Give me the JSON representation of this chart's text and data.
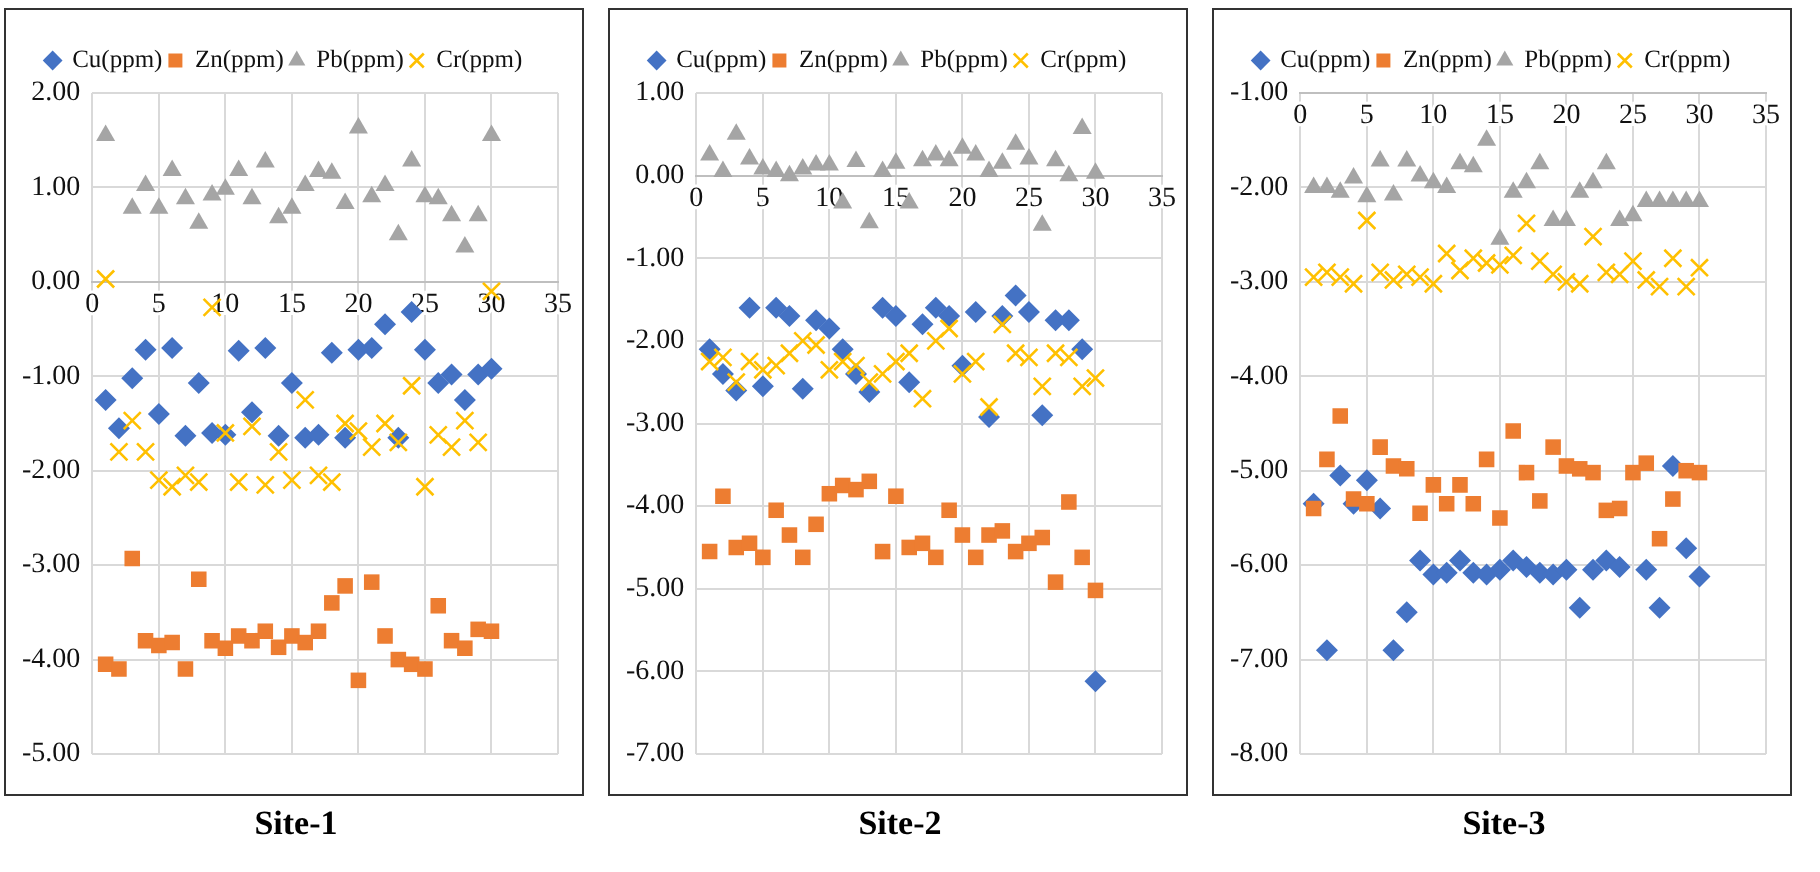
{
  "chart_data": [
    {
      "type": "scatter",
      "title": "Site-1",
      "x": [
        1,
        2,
        3,
        4,
        5,
        6,
        7,
        8,
        9,
        10,
        11,
        12,
        13,
        14,
        15,
        16,
        17,
        18,
        19,
        20,
        21,
        22,
        23,
        24,
        25,
        26,
        27,
        28,
        29,
        30
      ],
      "xlim": [
        0,
        35
      ],
      "xticks": [
        0,
        5,
        10,
        15,
        20,
        25,
        30,
        35
      ],
      "ylim": [
        -5,
        2
      ],
      "yticks": [
        {
          "value": -5,
          "label": "-5.00"
        },
        {
          "value": -4,
          "label": "-4.00"
        },
        {
          "value": -3,
          "label": "-3.00"
        },
        {
          "value": -2,
          "label": "-2.00"
        },
        {
          "value": -1,
          "label": "-1.00"
        },
        {
          "value": 0,
          "label": "0.00"
        },
        {
          "value": 1,
          "label": "1.00"
        },
        {
          "value": 2,
          "label": "2.00"
        }
      ],
      "grid": true,
      "legend": "top",
      "series": [
        {
          "name": "Cu(ppm)",
          "color": "#4472c4",
          "marker": "diamond",
          "values": [
            -1.25,
            -1.55,
            -1.02,
            -0.72,
            -1.4,
            -0.7,
            -1.63,
            -1.07,
            -1.6,
            -1.62,
            -0.73,
            -1.38,
            -0.7,
            -1.63,
            -1.07,
            -1.65,
            -1.62,
            -0.75,
            -1.65,
            -0.72,
            -0.7,
            -0.45,
            -1.65,
            -0.32,
            -0.72,
            -1.07,
            -0.98,
            -1.25,
            -0.98,
            -0.92
          ]
        },
        {
          "name": "Zn(ppm)",
          "color": "#ed7d31",
          "marker": "square",
          "values": [
            -4.05,
            -4.1,
            -2.93,
            -3.8,
            -3.85,
            -3.82,
            -4.1,
            -3.15,
            -3.8,
            -3.88,
            -3.75,
            -3.8,
            -3.7,
            -3.87,
            -3.75,
            -3.82,
            -3.7,
            -3.4,
            -3.22,
            -4.22,
            -3.18,
            -3.75,
            -4.0,
            -4.05,
            -4.1,
            -3.43,
            -3.8,
            -3.88,
            -3.68,
            -3.7
          ]
        },
        {
          "name": "Pb(ppm)",
          "color": "#a5a5a5",
          "marker": "triangle",
          "values": [
            1.55,
            null,
            0.78,
            1.02,
            0.78,
            1.18,
            0.88,
            0.62,
            0.92,
            0.98,
            1.18,
            0.88,
            1.27,
            0.68,
            0.78,
            1.02,
            1.17,
            1.15,
            0.83,
            1.63,
            0.9,
            1.02,
            0.5,
            1.28,
            0.9,
            0.88,
            0.7,
            0.37,
            0.7,
            1.55
          ]
        },
        {
          "name": "Cr(ppm)",
          "color": "#ffc000",
          "marker": "cross",
          "values": [
            0.03,
            -1.8,
            -1.47,
            -1.8,
            -2.1,
            -2.17,
            -2.05,
            -2.12,
            -0.27,
            -1.6,
            -2.12,
            -1.53,
            -2.15,
            -1.8,
            -2.1,
            -1.25,
            -2.05,
            -2.12,
            -1.5,
            -1.58,
            -1.75,
            -1.5,
            -1.7,
            -1.1,
            -2.17,
            -1.62,
            -1.75,
            -1.47,
            -1.7,
            -0.1
          ]
        }
      ]
    },
    {
      "type": "scatter",
      "title": "Site-2",
      "x": [
        1,
        2,
        3,
        4,
        5,
        6,
        7,
        8,
        9,
        10,
        11,
        12,
        13,
        14,
        15,
        16,
        17,
        18,
        19,
        20,
        21,
        22,
        23,
        24,
        25,
        26,
        27,
        28,
        29,
        30
      ],
      "xlim": [
        0,
        35
      ],
      "xticks": [
        0,
        5,
        10,
        15,
        20,
        25,
        30,
        35
      ],
      "ylim": [
        -7,
        1
      ],
      "yticks": [
        {
          "value": -7,
          "label": "-7.00"
        },
        {
          "value": -6,
          "label": "-6.00"
        },
        {
          "value": -5,
          "label": "-5.00"
        },
        {
          "value": -4,
          "label": "-4.00"
        },
        {
          "value": -3,
          "label": "-3.00"
        },
        {
          "value": -2,
          "label": "-2.00"
        },
        {
          "value": -1,
          "label": "-1.00"
        },
        {
          "value": 0,
          "label": "0.00"
        },
        {
          "value": 1,
          "label": "1.00"
        }
      ],
      "grid": true,
      "legend": "top",
      "series": [
        {
          "name": "Cu(ppm)",
          "color": "#4472c4",
          "marker": "diamond",
          "values": [
            -2.1,
            -2.4,
            -2.6,
            -1.6,
            -2.55,
            -1.6,
            -1.7,
            -2.58,
            -1.75,
            -1.85,
            -2.1,
            -2.4,
            -2.62,
            -1.6,
            -1.7,
            -2.5,
            -1.8,
            -1.6,
            -1.7,
            -2.3,
            -1.65,
            -2.92,
            -1.7,
            -1.45,
            -1.65,
            -2.9,
            -1.75,
            -1.75,
            -2.1,
            -6.12
          ]
        },
        {
          "name": "Zn(ppm)",
          "color": "#ed7d31",
          "marker": "square",
          "values": [
            -4.55,
            -3.88,
            -4.5,
            -4.45,
            -4.62,
            -4.05,
            -4.35,
            -4.62,
            -4.22,
            -3.85,
            -3.75,
            -3.8,
            -3.7,
            -4.55,
            -3.88,
            -4.5,
            -4.45,
            -4.62,
            -4.05,
            -4.35,
            -4.62,
            -4.35,
            -4.3,
            -4.55,
            -4.45,
            -4.38,
            -4.92,
            -3.95,
            -4.62,
            -5.02
          ]
        },
        {
          "name": "Pb(ppm)",
          "color": "#a5a5a5",
          "marker": "triangle",
          "values": [
            0.25,
            0.05,
            0.5,
            0.2,
            0.08,
            0.05,
            0,
            0.08,
            0.13,
            0.13,
            -0.33,
            0.17,
            -0.57,
            0.05,
            0.15,
            -0.33,
            0.18,
            0.25,
            0.18,
            0.33,
            0.25,
            0.05,
            0.15,
            0.38,
            0.2,
            -0.6,
            0.18,
            0,
            0.57,
            0.03
          ]
        },
        {
          "name": "Cr(ppm)",
          "color": "#ffc000",
          "marker": "cross",
          "values": [
            -2.25,
            -2.2,
            -2.5,
            -2.25,
            -2.35,
            -2.3,
            -2.15,
            -2.0,
            -2.05,
            -2.35,
            -2.25,
            -2.3,
            -2.5,
            -2.4,
            -2.25,
            -2.15,
            -2.7,
            -2.0,
            -1.85,
            -2.4,
            -2.25,
            -2.8,
            -1.8,
            -2.15,
            -2.2,
            -2.55,
            -2.15,
            -2.2,
            -2.55,
            -2.45
          ]
        }
      ]
    },
    {
      "type": "scatter",
      "title": "Site-3",
      "x": [
        1,
        2,
        3,
        4,
        5,
        6,
        7,
        8,
        9,
        10,
        11,
        12,
        13,
        14,
        15,
        16,
        17,
        18,
        19,
        20,
        21,
        22,
        23,
        24,
        25,
        26,
        27,
        28,
        29,
        30
      ],
      "xlim": [
        0,
        35
      ],
      "xticks": [
        0,
        5,
        10,
        15,
        20,
        25,
        30,
        35
      ],
      "ylim": [
        -8,
        -1
      ],
      "yticks": [
        {
          "value": -8,
          "label": "-8.00"
        },
        {
          "value": -7,
          "label": "-7.00"
        },
        {
          "value": -6,
          "label": "-6.00"
        },
        {
          "value": -5,
          "label": "-5.00"
        },
        {
          "value": -4,
          "label": "-4.00"
        },
        {
          "value": -3,
          "label": "-3.00"
        },
        {
          "value": -2,
          "label": "-2.00"
        },
        {
          "value": -1,
          "label": "-1.00"
        }
      ],
      "grid": true,
      "legend": "top",
      "series": [
        {
          "name": "Cu(ppm)",
          "color": "#4472c4",
          "marker": "diamond",
          "values": [
            -5.35,
            -6.9,
            -5.05,
            -5.35,
            -5.1,
            -5.4,
            -6.9,
            -6.5,
            -5.95,
            -6.1,
            -6.08,
            -5.95,
            -6.08,
            -6.1,
            -6.05,
            -5.95,
            -6.02,
            -6.08,
            -6.1,
            -6.05,
            -6.45,
            -6.05,
            -5.95,
            -6.02,
            null,
            -6.05,
            -6.45,
            -4.95,
            -5.82,
            -6.12
          ]
        },
        {
          "name": "Zn(ppm)",
          "color": "#ed7d31",
          "marker": "square",
          "values": [
            -5.4,
            -4.88,
            -4.42,
            -5.3,
            -5.35,
            -4.75,
            -4.95,
            -4.98,
            -5.45,
            -5.15,
            -5.35,
            -5.15,
            -5.35,
            -4.88,
            -5.5,
            -4.58,
            -5.02,
            -5.32,
            -4.75,
            -4.95,
            -4.98,
            -5.02,
            -5.42,
            -5.4,
            -5.02,
            -4.92,
            -5.72,
            -5.3,
            -5.0,
            -5.02
          ]
        },
        {
          "name": "Pb(ppm)",
          "color": "#a5a5a5",
          "marker": "triangle",
          "values": [
            -2.0,
            -2.0,
            -2.05,
            -1.9,
            -2.1,
            -1.72,
            -2.08,
            -1.72,
            -1.88,
            -1.95,
            -2.0,
            -1.75,
            -1.78,
            -1.5,
            -2.55,
            -2.05,
            -1.95,
            -1.75,
            -2.35,
            -2.35,
            -2.05,
            -1.95,
            -1.75,
            -2.35,
            -2.3,
            -2.15,
            -2.15,
            -2.15,
            -2.15,
            -2.15
          ]
        },
        {
          "name": "Cr(ppm)",
          "color": "#ffc000",
          "marker": "cross",
          "values": [
            -2.95,
            -2.9,
            -2.95,
            -3.02,
            -2.35,
            -2.9,
            -2.98,
            -2.92,
            -2.95,
            -3.02,
            -2.7,
            -2.88,
            -2.75,
            -2.8,
            -2.82,
            -2.72,
            -2.38,
            -2.78,
            -2.92,
            -3.0,
            -3.02,
            -2.52,
            -2.9,
            -2.92,
            -2.78,
            -2.98,
            -3.05,
            -2.75,
            -3.05,
            -2.85
          ]
        }
      ]
    }
  ]
}
